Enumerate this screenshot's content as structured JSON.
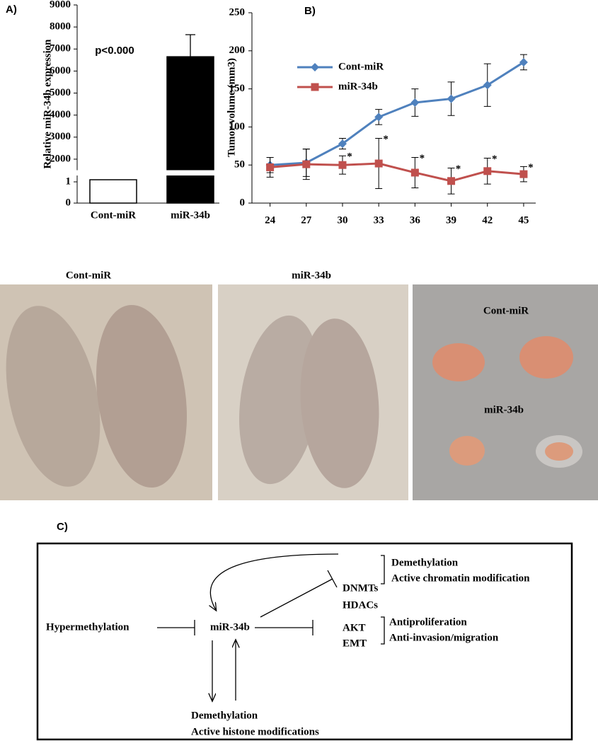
{
  "chart_data": [
    {
      "type": "bar",
      "panel_label": "A)",
      "ylabel": "Relative miR-34b expression",
      "categories": [
        "Cont-miR",
        "miR-34b"
      ],
      "values": [
        1.1,
        6650
      ],
      "errors": [
        null,
        1000
      ],
      "colors": [
        "#ffffff",
        "#000000"
      ],
      "annotation": "p<0.000",
      "ylim_lower": [
        0,
        1.3
      ],
      "ylim_upper": [
        1500,
        9000
      ],
      "yticks": [
        0,
        1,
        2000,
        3000,
        4000,
        5000,
        6000,
        7000,
        8000,
        9000
      ]
    },
    {
      "type": "line",
      "panel_label": "B)",
      "ylabel": "Tumor volume (mm3)",
      "x": [
        24,
        27,
        30,
        33,
        36,
        39,
        42,
        45
      ],
      "xlim": [
        22.5,
        46
      ],
      "ylim": [
        0,
        250
      ],
      "yticks": [
        0,
        50,
        100,
        150,
        200,
        250
      ],
      "legend": "upper-left",
      "series": [
        {
          "name": "Cont-miR",
          "color": "#4f81bd",
          "marker": "diamond",
          "values": [
            50,
            53,
            78,
            113,
            132,
            137,
            155,
            185
          ],
          "errors": [
            10,
            18,
            7,
            10,
            18,
            22,
            28,
            10
          ]
        },
        {
          "name": "miR-34b",
          "color": "#c0504d",
          "marker": "square",
          "values": [
            47,
            51,
            50,
            52,
            40,
            29,
            42,
            38
          ],
          "errors": [
            13,
            20,
            12,
            33,
            20,
            17,
            17,
            10
          ],
          "marker_labels": [
            null,
            null,
            "*",
            "*",
            "*",
            "*",
            "*",
            "*"
          ]
        }
      ]
    }
  ],
  "photos": {
    "mice": [
      "Cont-miR",
      "miR-34b"
    ],
    "tumors": [
      "Cont-miR",
      "miR-34b"
    ]
  },
  "diagram": {
    "panel_label": "C)",
    "source": "Hypermethylation",
    "center": "miR-34b",
    "targets_top": [
      "DNMTs",
      "HDACs"
    ],
    "effects_top": [
      "Demethylation",
      "Active chromatin modification"
    ],
    "targets_mid": [
      "AKT",
      "EMT"
    ],
    "effects_mid": [
      "Antiproliferation",
      "Anti-invasion/migration"
    ],
    "effects_bottom": [
      "Demethylation",
      "Active histone modifications"
    ]
  }
}
